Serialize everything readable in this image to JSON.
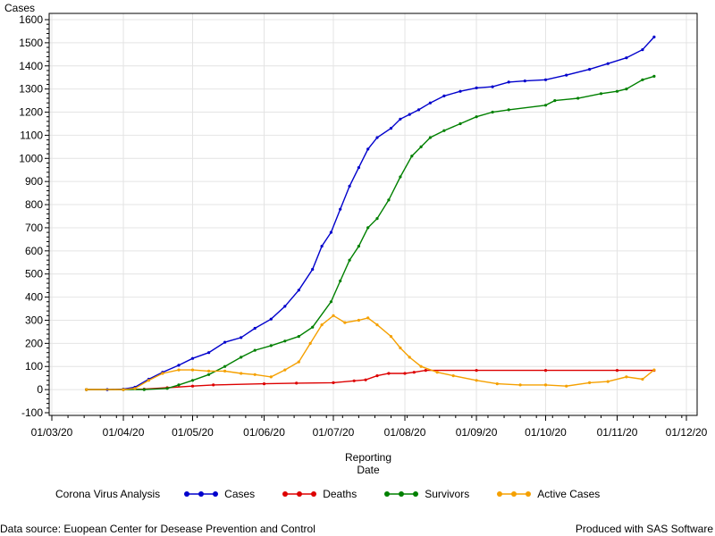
{
  "chart_data": {
    "type": "line",
    "ylabel": "Cases",
    "xlabel_lines": [
      "Reporting",
      "Date"
    ],
    "ylim": [
      -100,
      1600
    ],
    "y_ticks": [
      -100,
      0,
      100,
      200,
      300,
      400,
      500,
      600,
      700,
      800,
      900,
      1000,
      1100,
      1200,
      1300,
      1400,
      1500,
      1600
    ],
    "x_ticks": [
      "01/03/20",
      "01/04/20",
      "01/05/20",
      "01/06/20",
      "01/07/20",
      "01/08/20",
      "01/09/20",
      "01/10/20",
      "01/11/20",
      "01/12/20"
    ],
    "grid": true,
    "legend_title": "Corona Virus Analysis",
    "legend_position": "bottom",
    "series": [
      {
        "name": "Cases",
        "color": "#0000cc",
        "x": [
          "2020-03-16",
          "2020-03-25",
          "2020-04-01",
          "2020-04-06",
          "2020-04-12",
          "2020-04-18",
          "2020-04-25",
          "2020-05-01",
          "2020-05-08",
          "2020-05-15",
          "2020-05-22",
          "2020-05-28",
          "2020-06-04",
          "2020-06-10",
          "2020-06-16",
          "2020-06-22",
          "2020-06-26",
          "2020-06-30",
          "2020-07-04",
          "2020-07-08",
          "2020-07-12",
          "2020-07-16",
          "2020-07-20",
          "2020-07-26",
          "2020-07-30",
          "2020-08-03",
          "2020-08-07",
          "2020-08-12",
          "2020-08-18",
          "2020-08-25",
          "2020-09-01",
          "2020-09-08",
          "2020-09-15",
          "2020-09-22",
          "2020-10-01",
          "2020-10-10",
          "2020-10-20",
          "2020-10-28",
          "2020-11-05",
          "2020-11-12",
          "2020-11-17"
        ],
        "values": [
          0,
          0,
          2,
          10,
          45,
          75,
          105,
          135,
          160,
          205,
          225,
          265,
          305,
          360,
          430,
          520,
          620,
          680,
          780,
          880,
          960,
          1040,
          1090,
          1130,
          1170,
          1190,
          1210,
          1240,
          1270,
          1290,
          1305,
          1310,
          1330,
          1335,
          1340,
          1360,
          1385,
          1410,
          1435,
          1470,
          1525
        ]
      },
      {
        "name": "Deaths",
        "color": "#dd0000",
        "x": [
          "2020-03-16",
          "2020-04-01",
          "2020-04-10",
          "2020-04-20",
          "2020-05-01",
          "2020-05-10",
          "2020-06-01",
          "2020-06-15",
          "2020-07-01",
          "2020-07-10",
          "2020-07-15",
          "2020-07-20",
          "2020-07-25",
          "2020-08-01",
          "2020-08-05",
          "2020-08-10",
          "2020-09-01",
          "2020-10-01",
          "2020-11-01",
          "2020-11-17"
        ],
        "values": [
          0,
          0,
          2,
          8,
          15,
          20,
          25,
          28,
          30,
          38,
          42,
          60,
          70,
          70,
          75,
          83,
          83,
          83,
          83,
          83
        ]
      },
      {
        "name": "Survivors",
        "color": "#008000",
        "x": [
          "2020-03-16",
          "2020-04-01",
          "2020-04-10",
          "2020-04-20",
          "2020-04-25",
          "2020-05-01",
          "2020-05-08",
          "2020-05-15",
          "2020-05-22",
          "2020-05-28",
          "2020-06-04",
          "2020-06-10",
          "2020-06-16",
          "2020-06-22",
          "2020-06-30",
          "2020-07-04",
          "2020-07-08",
          "2020-07-12",
          "2020-07-16",
          "2020-07-20",
          "2020-07-25",
          "2020-07-30",
          "2020-08-04",
          "2020-08-08",
          "2020-08-12",
          "2020-08-18",
          "2020-08-25",
          "2020-09-01",
          "2020-09-08",
          "2020-09-15",
          "2020-10-01",
          "2020-10-05",
          "2020-10-15",
          "2020-10-25",
          "2020-11-01",
          "2020-11-05",
          "2020-11-12",
          "2020-11-17"
        ],
        "values": [
          0,
          0,
          0,
          5,
          20,
          40,
          65,
          100,
          140,
          170,
          190,
          210,
          230,
          270,
          380,
          470,
          560,
          620,
          700,
          740,
          820,
          920,
          1010,
          1050,
          1090,
          1120,
          1150,
          1180,
          1200,
          1210,
          1230,
          1250,
          1260,
          1280,
          1290,
          1300,
          1340,
          1355
        ]
      },
      {
        "name": "Active Cases",
        "color": "#f5a000",
        "x": [
          "2020-03-16",
          "2020-04-01",
          "2020-04-06",
          "2020-04-12",
          "2020-04-18",
          "2020-04-25",
          "2020-05-01",
          "2020-05-08",
          "2020-05-15",
          "2020-05-22",
          "2020-05-28",
          "2020-06-04",
          "2020-06-10",
          "2020-06-16",
          "2020-06-21",
          "2020-06-26",
          "2020-07-01",
          "2020-07-06",
          "2020-07-12",
          "2020-07-16",
          "2020-07-20",
          "2020-07-26",
          "2020-07-30",
          "2020-08-03",
          "2020-08-08",
          "2020-08-15",
          "2020-08-22",
          "2020-09-01",
          "2020-09-10",
          "2020-09-20",
          "2020-10-01",
          "2020-10-10",
          "2020-10-20",
          "2020-10-28",
          "2020-11-05",
          "2020-11-12",
          "2020-11-17"
        ],
        "values": [
          0,
          0,
          5,
          40,
          70,
          85,
          85,
          80,
          80,
          70,
          65,
          55,
          85,
          120,
          200,
          280,
          320,
          290,
          300,
          310,
          280,
          230,
          180,
          140,
          100,
          75,
          60,
          40,
          25,
          20,
          20,
          15,
          30,
          35,
          55,
          45,
          85
        ]
      }
    ]
  },
  "footer": {
    "source": "Data source: Euopean Center for Desease Prevention and Control",
    "produced": "Produced with SAS Software"
  }
}
